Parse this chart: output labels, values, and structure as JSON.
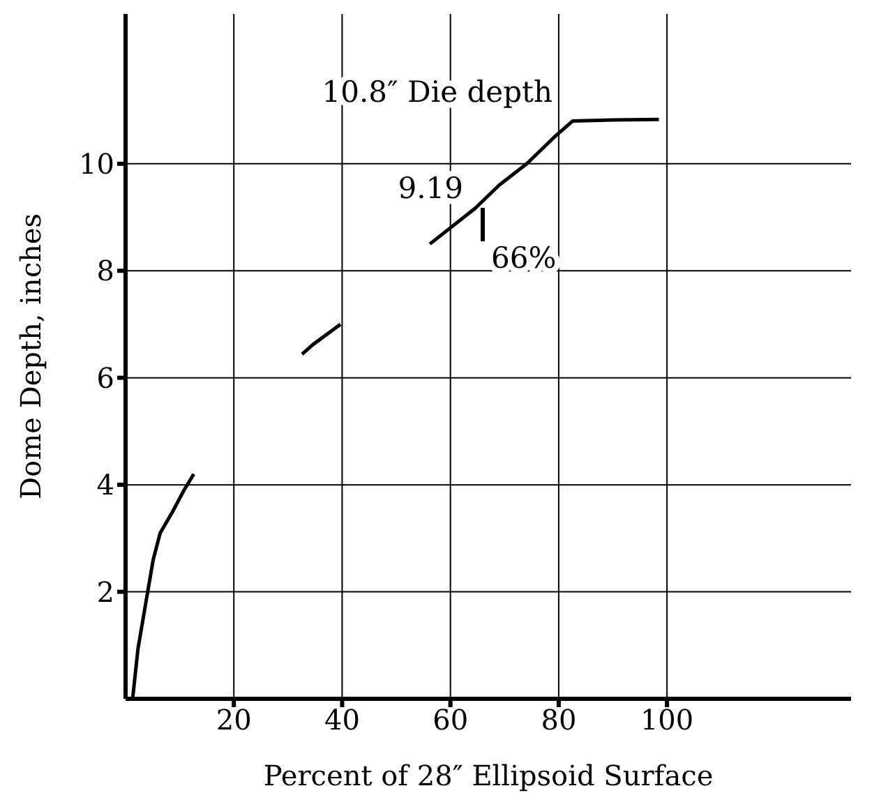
{
  "chart_data": {
    "type": "line",
    "xlabel": "Percent of 28″ Ellipsoid Surface",
    "ylabel": "Dome Depth, inches",
    "x": [
      1.3,
      2.3,
      5.1,
      6.4,
      8.7,
      10.8,
      12.6,
      20,
      32.6,
      34.6,
      39.7,
      48,
      56.2,
      64.6,
      69,
      74.1,
      79.2,
      82.6,
      90,
      98.5
    ],
    "series": [
      {
        "color": "#000000",
        "values": [
          0,
          0.94,
          2.6,
          3.1,
          3.5,
          3.9,
          4.2,
          null,
          6.44,
          6.62,
          7.0,
          null,
          8.5,
          9.17,
          9.6,
          10.0,
          10.5,
          10.8,
          10.82,
          10.83
        ]
      }
    ],
    "xlim": [
      0,
      134
    ],
    "ylim": [
      0,
      12.8
    ],
    "xticks": [
      20,
      40,
      60,
      80,
      100
    ],
    "yticks": [
      2,
      4,
      6,
      8,
      10
    ],
    "grid": true,
    "marker": "none",
    "line_style": "solid",
    "annotations": [
      "10.8″ Die depth",
      "9.19",
      "66%"
    ]
  }
}
